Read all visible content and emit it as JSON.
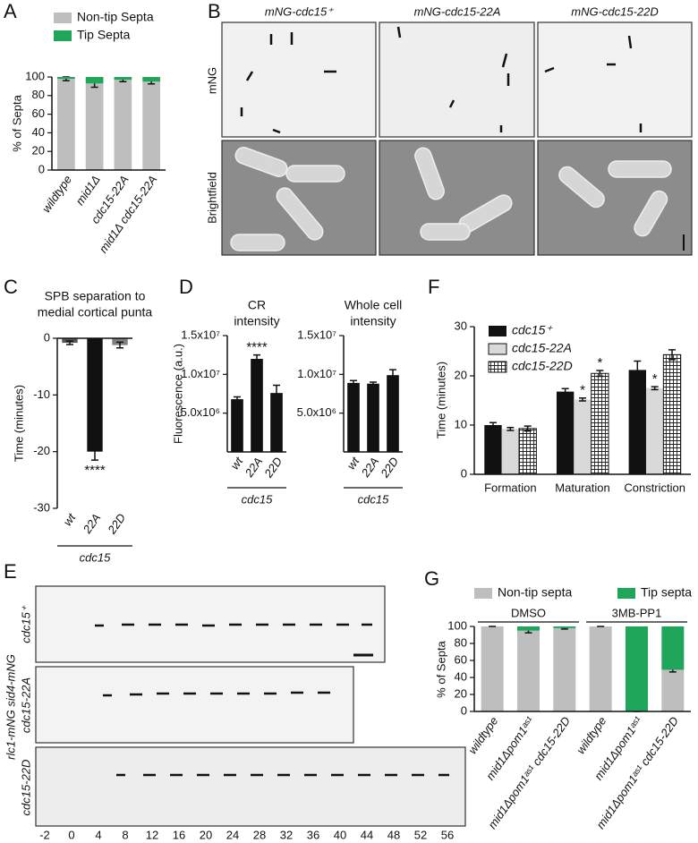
{
  "panel_labels": [
    "A",
    "B",
    "C",
    "D",
    "E",
    "F",
    "G"
  ],
  "panel_B": {
    "columns": [
      "mNG-cdc15⁺",
      "mNG-cdc15-22A",
      "mNG-cdc15-22D"
    ],
    "rows": [
      "mNG",
      "Brightfield"
    ]
  },
  "panel_E": {
    "strain": "rlc1-mNG sid4-mNG",
    "rows": [
      "cdc15⁺",
      "cdc15-22A",
      "cdc15-22D"
    ],
    "time_labels": [
      -2,
      0,
      4,
      8,
      12,
      16,
      20,
      24,
      28,
      32,
      36,
      40,
      44,
      48,
      52,
      56
    ]
  },
  "chart_data": [
    {
      "type": "bar",
      "stacked": true,
      "ylabel": "% of Septa",
      "categories": [
        "wildtype",
        "mid1Δ",
        "cdc15-22A",
        "mid1Δ cdc15-22A"
      ],
      "series": [
        {
          "name": "Non-tip Septa",
          "color": "#bebebe",
          "values": [
            98,
            93,
            97,
            95
          ],
          "errors": [
            2,
            4,
            2,
            2.5
          ]
        },
        {
          "name": "Tip Septa",
          "color": "#1fa65a",
          "values": [
            2,
            7,
            3,
            5
          ]
        }
      ],
      "ylim": [
        0,
        100
      ],
      "yticks": [
        0,
        20,
        40,
        60,
        80,
        100
      ]
    },
    {
      "type": "bar",
      "title": [
        "SPB separation to",
        "medial cortical punta"
      ],
      "ylabel": "Time (minutes)",
      "categories": [
        "wt",
        "22A",
        "22D"
      ],
      "values": [
        -0.8,
        -20,
        -1.2
      ],
      "errors": [
        0.3,
        1.5,
        0.5
      ],
      "colors": [
        "#555555",
        "#111111",
        "#808080"
      ],
      "annotations": [
        {
          "text": "****",
          "category": 1
        }
      ],
      "group_label": "cdc15",
      "ylim": [
        -30,
        0
      ],
      "yticks": [
        -30,
        -20,
        -10,
        0
      ]
    },
    {
      "type": "bar",
      "title": [
        "CR",
        "intensity"
      ],
      "ylabel": "Fluorescence (a.u.)",
      "categories": [
        "wt",
        "22A",
        "22D"
      ],
      "values": [
        6800000,
        12000000,
        7600000
      ],
      "errors": [
        300000,
        500000,
        1000000
      ],
      "color": "#111111",
      "annotations": [
        {
          "text": "****",
          "category": 1
        }
      ],
      "group_label": "cdc15",
      "ylim": [
        0,
        15000000
      ],
      "yticks": [
        {
          "value": 5000000,
          "label": "5.0x10⁶"
        },
        {
          "value": 10000000,
          "label": "1.0x10⁷"
        },
        {
          "value": 15000000,
          "label": "1.5x10⁷"
        }
      ]
    },
    {
      "type": "bar",
      "title": [
        "Whole cell",
        "intensity"
      ],
      "categories": [
        "wt",
        "22A",
        "22D"
      ],
      "values": [
        8900000,
        8800000,
        9900000
      ],
      "errors": [
        300000,
        200000,
        700000
      ],
      "color": "#111111",
      "group_label": "cdc15",
      "ylim": [
        0,
        15000000
      ],
      "yticks": [
        {
          "value": 5000000,
          "label": "5.0x10⁶"
        },
        {
          "value": 10000000,
          "label": "1.0x10⁷"
        },
        {
          "value": 15000000,
          "label": "1.5x10⁷"
        }
      ]
    },
    {
      "type": "bar",
      "ylabel": "Time (minutes)",
      "categories": [
        "Formation",
        "Maturation",
        "Constriction"
      ],
      "series": [
        {
          "name": "cdc15⁺",
          "color": "#111111",
          "values": [
            10,
            16.8,
            21.2
          ],
          "errors": [
            0.5,
            0.6,
            1.8
          ]
        },
        {
          "name": "cdc15-22A",
          "color": "#d9d9d9",
          "values": [
            9.2,
            15.2,
            17.5
          ],
          "errors": [
            0.3,
            0.3,
            0.3
          ]
        },
        {
          "name": "cdc15-22D",
          "color": "#ffffff",
          "hatch": true,
          "values": [
            9.3,
            20.5,
            24.3
          ],
          "errors": [
            0.5,
            0.6,
            1
          ]
        }
      ],
      "annotations": [
        {
          "text": "*",
          "series": 1,
          "category": 1
        },
        {
          "text": "*",
          "series": 2,
          "category": 1
        },
        {
          "text": "*",
          "series": 1,
          "category": 2
        }
      ],
      "ylim": [
        0,
        30
      ],
      "yticks": [
        0,
        10,
        20,
        30
      ]
    },
    {
      "type": "bar",
      "stacked": true,
      "ylabel": "% of Septa",
      "categories": [
        "wildtype",
        "mid1Δpom1ᵃˢ¹",
        "mid1Δpom1ᵃˢ¹ cdc15-22D",
        "wildtype",
        "mid1Δpom1ᵃˢ¹",
        "mid1Δpom1ᵃˢ¹ cdc15-22D"
      ],
      "groups": [
        "DMSO",
        "3MB-PP1"
      ],
      "series": [
        {
          "name": "Non-tip septa",
          "color": "#bebebe",
          "values": [
            100,
            95,
            98,
            100,
            0,
            49
          ],
          "errors": [
            0,
            2.5,
            1,
            0,
            0,
            2.5
          ]
        },
        {
          "name": "Tip septa",
          "color": "#1fa65a",
          "values": [
            0,
            5,
            2,
            0,
            100,
            51
          ]
        }
      ],
      "ylim": [
        0,
        100
      ],
      "yticks": [
        0,
        20,
        40,
        60,
        80,
        100
      ]
    }
  ]
}
